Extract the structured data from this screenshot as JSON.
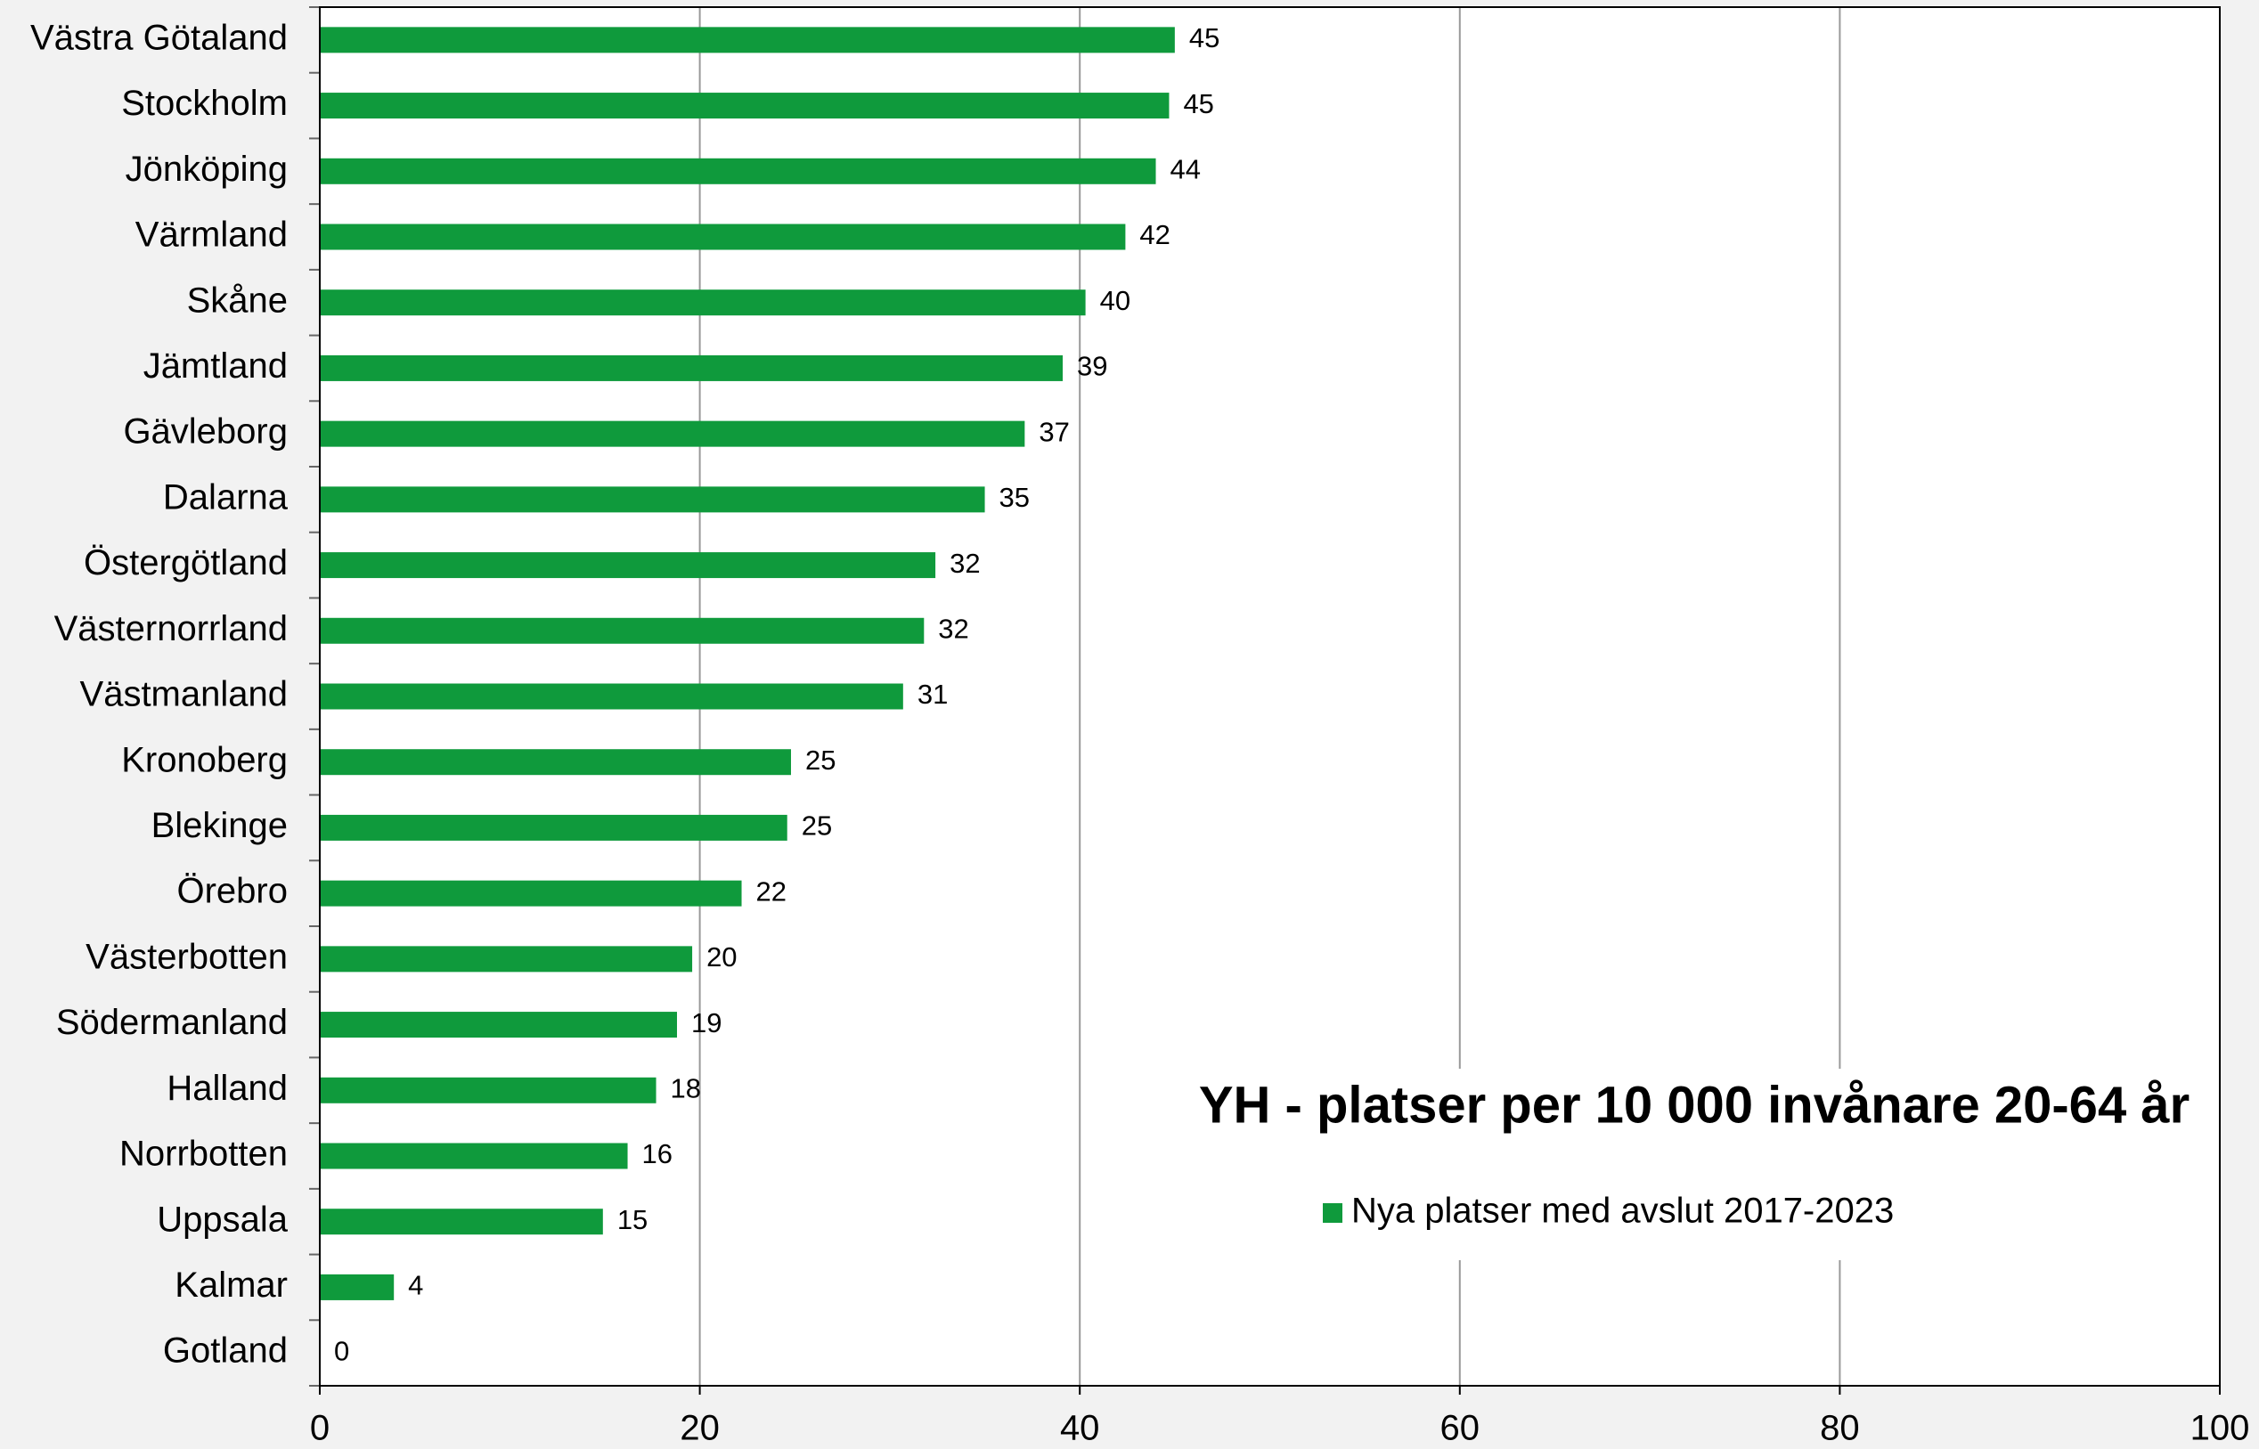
{
  "chart_data": {
    "type": "hbar",
    "title": "YH - platser per 10 000 invånare 20-64 år",
    "categories": [
      "Västra Götaland",
      "Stockholm",
      "Jönköping",
      "Värmland",
      "Skåne",
      "Jämtland",
      "Gävleborg",
      "Dalarna",
      "Östergötland",
      "Västernorrland",
      "Västmanland",
      "Kronoberg",
      "Blekinge",
      "Örebro",
      "Västerbotten",
      "Södermanland",
      "Halland",
      "Norrbotten",
      "Uppsala",
      "Kalmar",
      "Gotland"
    ],
    "series": [
      {
        "name": "Nya platser med avslut 2017-2023",
        "color": "#0f9a3c",
        "values": [
          45.0,
          44.7,
          44.0,
          42.4,
          40.3,
          39.1,
          37.1,
          35.0,
          32.4,
          31.8,
          30.7,
          24.8,
          24.6,
          22.2,
          19.6,
          18.8,
          17.7,
          16.2,
          14.9,
          3.9,
          0
        ],
        "value_labels": [
          "45",
          "45",
          "44",
          "42",
          "40",
          "39",
          "37",
          "35",
          "32",
          "32",
          "31",
          "25",
          "25",
          "22",
          "20",
          "19",
          "18",
          "16",
          "15",
          "4",
          "0"
        ]
      }
    ],
    "xlim": [
      0,
      100
    ],
    "xticks": [
      0,
      20,
      40,
      60,
      80,
      100
    ],
    "grid": true
  }
}
